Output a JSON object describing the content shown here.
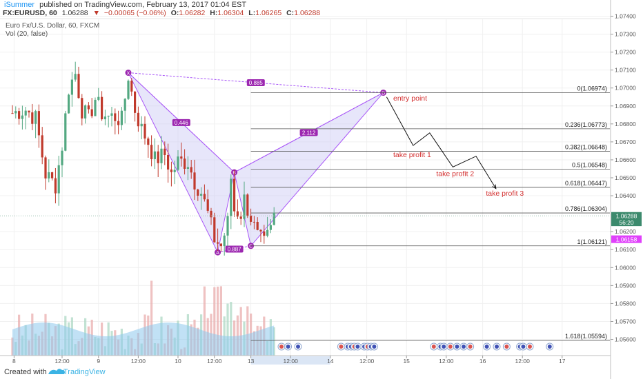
{
  "header": {
    "author": "iSummer",
    "published_text": "published on TradingView.com, February 13, 2017 01:04 EST",
    "symbol": "FX:EURUSD, 60",
    "last_price": "1.06288",
    "change": "−0.00065 (−0.06%)",
    "ohlc": [
      {
        "label": "O:",
        "value": "1.06282"
      },
      {
        "label": "H:",
        "value": "1.06304"
      },
      {
        "label": "L:",
        "value": "1.06265"
      },
      {
        "label": "C:",
        "value": "1.06288"
      }
    ],
    "colors": {
      "author": "#2196f3",
      "down": "#c0392b",
      "text": "#333333"
    }
  },
  "legend": {
    "series_title": "Euro Fx/U.S. Dollar, 60, FXCM",
    "volume_title": "Vol (20, false)"
  },
  "footer": {
    "created_with": "Created with",
    "brand": "TradingView"
  },
  "chart_data": {
    "type": "candlestick",
    "y_axis": {
      "range": [
        1.0551,
        1.0749
      ],
      "ticks": [
        1.074,
        1.073,
        1.072,
        1.071,
        1.07,
        1.069,
        1.068,
        1.067,
        1.066,
        1.065,
        1.064,
        1.062,
        1.061,
        1.06,
        1.059,
        1.058,
        1.057,
        1.056
      ],
      "ticks_text": [
        "1.07400",
        "1.07300",
        "1.07200",
        "1.07100",
        "1.07000",
        "1.06900",
        "1.06800",
        "1.06700",
        "1.06600",
        "1.06500",
        "1.06400",
        "1.06200",
        "1.06100",
        "1.06000",
        "1.05900",
        "1.05800",
        "1.05700",
        "1.05600"
      ]
    },
    "x_axis": {
      "ticks": [
        {
          "label": "8",
          "index": 0.5
        },
        {
          "label": "12:00",
          "index": 15
        },
        {
          "label": "9",
          "index": 26
        },
        {
          "label": "12:00",
          "index": 38
        },
        {
          "label": "10",
          "index": 50
        },
        {
          "label": "12:00",
          "index": 61
        },
        {
          "label": "13",
          "index": 72
        },
        {
          "label": "12:00",
          "index": 84
        },
        {
          "label": "14",
          "index": 96
        },
        {
          "label": "12:00",
          "index": 107
        },
        {
          "label": "15",
          "index": 119
        },
        {
          "label": "12:00",
          "index": 131
        },
        {
          "label": "16",
          "index": 142
        },
        {
          "label": "12:00",
          "index": 154
        },
        {
          "label": "17",
          "index": 166
        }
      ],
      "highlight_range": [
        72,
        96
      ]
    },
    "price_labels": [
      {
        "value": 1.06288,
        "text": "1.06288",
        "color": "#3c8a6d"
      },
      {
        "value": 1.06252,
        "text": "56:20",
        "color": "#3c8a6d"
      },
      {
        "value": 1.06158,
        "text": "1.06158",
        "color": "#e040fb"
      }
    ],
    "candles_summary": {
      "count": 80,
      "start_value": 1.0686,
      "colors": {
        "up": "#53a881",
        "down": "#c0392b"
      },
      "waypoints": [
        {
          "i": 0,
          "v": 1.0686
        },
        {
          "i": 4,
          "v": 1.0688
        },
        {
          "i": 7,
          "v": 1.0683
        },
        {
          "i": 10,
          "v": 1.0652
        },
        {
          "i": 13,
          "v": 1.0646
        },
        {
          "i": 15,
          "v": 1.0668
        },
        {
          "i": 17,
          "v": 1.07
        },
        {
          "i": 19,
          "v": 1.0708
        },
        {
          "i": 21,
          "v": 1.0688
        },
        {
          "i": 23,
          "v": 1.0683
        },
        {
          "i": 25,
          "v": 1.0694
        },
        {
          "i": 27,
          "v": 1.0686
        },
        {
          "i": 29,
          "v": 1.0684
        },
        {
          "i": 31,
          "v": 1.0684
        },
        {
          "i": 33,
          "v": 1.0682
        },
        {
          "i": 35,
          "v": 1.0707
        },
        {
          "i": 37,
          "v": 1.0688
        },
        {
          "i": 39,
          "v": 1.0677
        },
        {
          "i": 41,
          "v": 1.067
        },
        {
          "i": 43,
          "v": 1.066
        },
        {
          "i": 46,
          "v": 1.0663
        },
        {
          "i": 48,
          "v": 1.0652
        },
        {
          "i": 50,
          "v": 1.0659
        },
        {
          "i": 53,
          "v": 1.0659
        },
        {
          "i": 55,
          "v": 1.0648
        },
        {
          "i": 57,
          "v": 1.0642
        },
        {
          "i": 59,
          "v": 1.063
        },
        {
          "i": 61,
          "v": 1.0616
        },
        {
          "i": 63,
          "v": 1.0612
        },
        {
          "i": 65,
          "v": 1.0625
        },
        {
          "i": 66,
          "v": 1.065
        },
        {
          "i": 67,
          "v": 1.0632
        },
        {
          "i": 69,
          "v": 1.063
        },
        {
          "i": 70,
          "v": 1.0638
        },
        {
          "i": 72,
          "v": 1.0628
        },
        {
          "i": 74,
          "v": 1.0617
        },
        {
          "i": 76,
          "v": 1.0613
        },
        {
          "i": 78,
          "v": 1.0621
        },
        {
          "i": 79,
          "v": 1.0629
        }
      ]
    },
    "harmonic_pattern": {
      "points": [
        {
          "label": "X",
          "index": 35,
          "value": 1.07085
        },
        {
          "label": "A",
          "index": 62,
          "value": 1.06085
        },
        {
          "label": "B",
          "index": 67,
          "value": 1.0653
        },
        {
          "label": "C",
          "index": 72,
          "value": 1.06121
        },
        {
          "label": "D",
          "index": 112,
          "value": 1.06974
        }
      ],
      "ratios": [
        {
          "text": "0.446",
          "between": [
            "X",
            "B"
          ]
        },
        {
          "text": "0.887",
          "between": [
            "A",
            "C"
          ]
        },
        {
          "text": "2.112",
          "between": [
            "B",
            "D"
          ]
        },
        {
          "text": "0.885",
          "between": [
            "X",
            "D"
          ]
        }
      ],
      "color": "#a855f7"
    },
    "fib_levels": [
      {
        "ratio": "0",
        "value": 1.06974,
        "text": "0(1.06974)"
      },
      {
        "ratio": "0.236",
        "value": 1.06773,
        "text": "0.236(1.06773)"
      },
      {
        "ratio": "0.382",
        "value": 1.06648,
        "text": "0.382(1.06648)"
      },
      {
        "ratio": "0.5",
        "value": 1.06548,
        "text": "0.5(1.06548)"
      },
      {
        "ratio": "0.618",
        "value": 1.06447,
        "text": "0.618(1.06447)"
      },
      {
        "ratio": "0.786",
        "value": 1.06304,
        "text": "0.786(1.06304)"
      },
      {
        "ratio": "1",
        "value": 1.06121,
        "text": "1(1.06121)"
      },
      {
        "ratio": "1.618",
        "value": 1.05594,
        "text": "1.618(1.05594)"
      }
    ],
    "projection": {
      "path": [
        {
          "index": 113,
          "value": 1.0695
        },
        {
          "index": 121,
          "value": 1.0668
        },
        {
          "index": 126,
          "value": 1.0675
        },
        {
          "index": 133,
          "value": 1.0656
        },
        {
          "index": 140,
          "value": 1.0662
        },
        {
          "index": 146,
          "value": 1.0644
        }
      ],
      "labels": [
        {
          "text": "entry point",
          "index": 115,
          "value": 1.0693
        },
        {
          "text": "take profit 1",
          "index": 115,
          "value": 1.06615
        },
        {
          "text": "take profit 2",
          "index": 128,
          "value": 1.0651
        },
        {
          "text": "take profit 3",
          "index": 143,
          "value": 1.064
        }
      ],
      "label_color": "#d32f2f"
    },
    "volume": {
      "colors": {
        "up": "#a8d5c0",
        "down": "#e8a8a8",
        "ma_fill": "#8ec9ec"
      },
      "max_index": 80
    },
    "events_count": 17,
    "grid": true
  }
}
